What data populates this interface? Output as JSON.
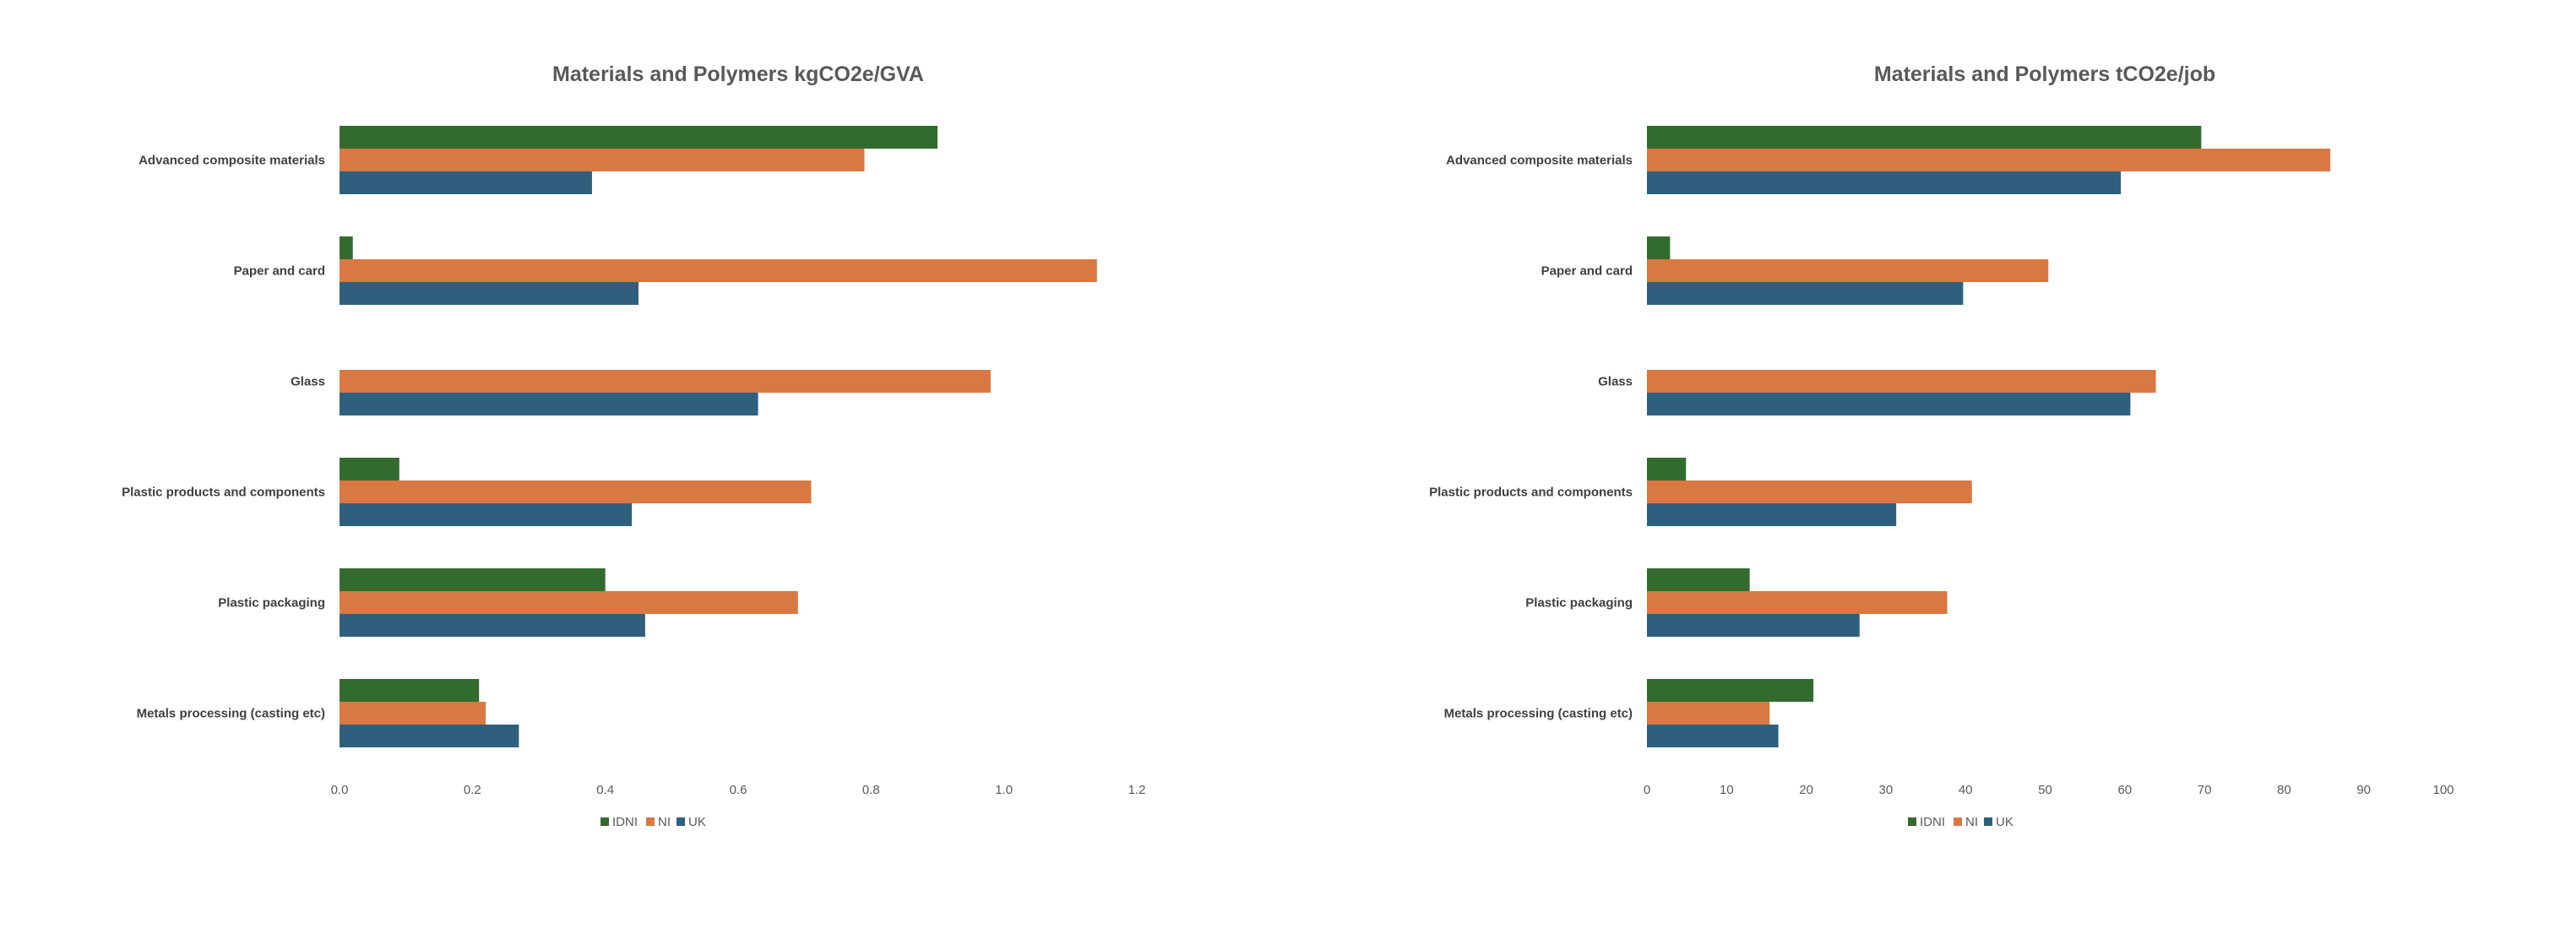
{
  "chart_data": [
    {
      "type": "bar",
      "orientation": "horizontal",
      "title": "Materials and Polymers kgCO2e/GVA",
      "categories": [
        "Advanced composite materials",
        "Paper and card",
        "Glass",
        "Plastic products and components",
        "Plastic packaging",
        "Metals processing (casting etc)"
      ],
      "series": [
        {
          "name": "IDNI",
          "color": "#336b2f",
          "values": [
            0.9,
            0.02,
            null,
            0.09,
            0.4,
            0.21
          ]
        },
        {
          "name": "NI",
          "color": "#d97842",
          "values": [
            0.79,
            1.14,
            0.98,
            0.71,
            0.69,
            0.22
          ]
        },
        {
          "name": "UK",
          "color": "#2e607e",
          "values": [
            0.38,
            0.45,
            0.63,
            0.44,
            0.46,
            0.27
          ]
        }
      ],
      "xlim": [
        0,
        1.2
      ],
      "xticks": [
        "0.0",
        "0.2",
        "0.4",
        "0.6",
        "0.8",
        "1.0",
        "1.2"
      ],
      "grid": false,
      "legend": "bottom"
    },
    {
      "type": "bar",
      "orientation": "horizontal",
      "title": "Materials and Polymers tCO2e/job",
      "categories": [
        "Advanced composite materials",
        "Paper and card",
        "Glass",
        "Plastic products and components",
        "Plastic packaging",
        "Metals processing (casting etc)"
      ],
      "series": [
        {
          "name": "IDNI",
          "color": "#336b2f",
          "values": [
            69.6,
            2.9,
            null,
            4.9,
            12.9,
            20.9
          ]
        },
        {
          "name": "NI",
          "color": "#d97842",
          "values": [
            85.8,
            50.4,
            63.9,
            40.8,
            37.7,
            15.4
          ]
        },
        {
          "name": "UK",
          "color": "#2e607e",
          "values": [
            59.5,
            39.7,
            60.7,
            31.3,
            26.7,
            16.5
          ]
        }
      ],
      "xlim": [
        0,
        100
      ],
      "xticks": [
        "0",
        "10",
        "20",
        "30",
        "40",
        "50",
        "60",
        "70",
        "80",
        "90",
        "100"
      ],
      "grid": false,
      "legend": "bottom"
    }
  ]
}
